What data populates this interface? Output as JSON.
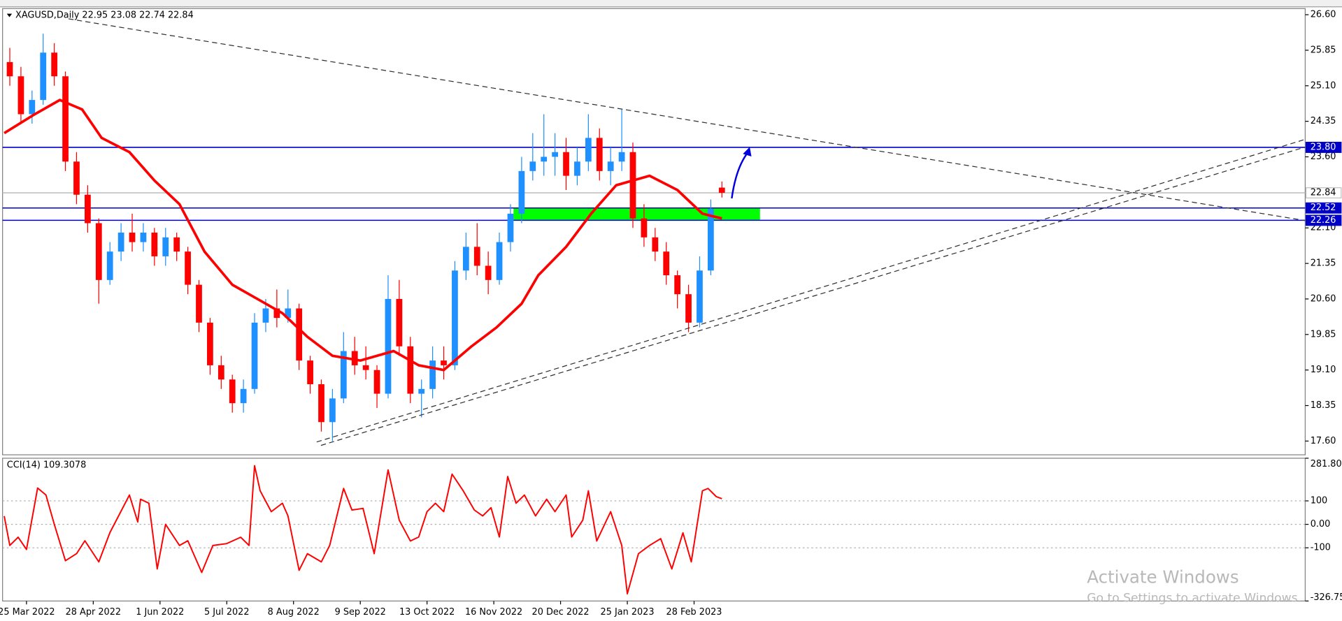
{
  "chart_data": {
    "type": "candlestick",
    "title": "XAGUSD,Daily  22.95 23.08 22.74 22.84",
    "up_color": "#1e90ff",
    "down_color": "#ff0000",
    "x": [
      2,
      6,
      10,
      14,
      18,
      22,
      26,
      30,
      34,
      38,
      42,
      46,
      50,
      54,
      58,
      62,
      66,
      70,
      74,
      78,
      82,
      86,
      90,
      94,
      98,
      102,
      106,
      110,
      114,
      118,
      122,
      126,
      130,
      134,
      138,
      142,
      146,
      150,
      154,
      158,
      162,
      166,
      170,
      174,
      178,
      182,
      186,
      190,
      194,
      198,
      202,
      206,
      210,
      214,
      218,
      222,
      226,
      230,
      234,
      238,
      242,
      246,
      250,
      254,
      258
    ],
    "ohlc": [
      [
        25.6,
        25.9,
        25.1,
        25.3
      ],
      [
        25.3,
        25.5,
        24.3,
        24.5
      ],
      [
        24.5,
        25.0,
        24.3,
        24.8
      ],
      [
        24.8,
        26.2,
        24.7,
        25.8
      ],
      [
        25.8,
        26.0,
        25.1,
        25.3
      ],
      [
        25.3,
        25.4,
        23.3,
        23.5
      ],
      [
        23.5,
        23.7,
        22.6,
        22.8
      ],
      [
        22.8,
        23.0,
        22.0,
        22.2
      ],
      [
        22.2,
        22.3,
        20.5,
        21.0
      ],
      [
        21.0,
        21.8,
        20.9,
        21.6
      ],
      [
        21.6,
        22.2,
        21.4,
        22.0
      ],
      [
        22.0,
        22.4,
        21.6,
        21.8
      ],
      [
        21.8,
        22.2,
        21.6,
        22.0
      ],
      [
        22.0,
        22.1,
        21.3,
        21.5
      ],
      [
        21.5,
        22.1,
        21.3,
        21.9
      ],
      [
        21.9,
        22.0,
        21.4,
        21.6
      ],
      [
        21.6,
        21.7,
        20.7,
        20.9
      ],
      [
        20.9,
        21.0,
        19.9,
        20.1
      ],
      [
        20.1,
        20.2,
        19.0,
        19.2
      ],
      [
        19.2,
        19.4,
        18.7,
        18.9
      ],
      [
        18.9,
        19.0,
        18.2,
        18.4
      ],
      [
        18.4,
        18.9,
        18.2,
        18.7
      ],
      [
        18.7,
        20.3,
        18.6,
        20.1
      ],
      [
        20.1,
        20.6,
        19.9,
        20.4
      ],
      [
        20.4,
        20.8,
        20.0,
        20.2
      ],
      [
        20.2,
        20.8,
        20.1,
        20.4
      ],
      [
        20.4,
        20.5,
        19.1,
        19.3
      ],
      [
        19.3,
        19.4,
        18.6,
        18.8
      ],
      [
        18.8,
        18.9,
        17.8,
        18.0
      ],
      [
        18.0,
        18.7,
        17.6,
        18.5
      ],
      [
        18.5,
        19.9,
        18.4,
        19.5
      ],
      [
        19.5,
        19.8,
        19.0,
        19.2
      ],
      [
        19.2,
        19.6,
        18.9,
        19.1
      ],
      [
        19.1,
        19.2,
        18.3,
        18.6
      ],
      [
        18.6,
        21.1,
        18.5,
        20.6
      ],
      [
        20.6,
        21.0,
        19.4,
        19.6
      ],
      [
        19.6,
        19.8,
        18.4,
        18.6
      ],
      [
        18.6,
        18.9,
        18.1,
        18.7
      ],
      [
        18.7,
        19.6,
        18.5,
        19.3
      ],
      [
        19.3,
        19.6,
        18.9,
        19.2
      ],
      [
        19.2,
        21.4,
        19.1,
        21.2
      ],
      [
        21.2,
        22.0,
        21.0,
        21.7
      ],
      [
        21.7,
        22.2,
        21.1,
        21.3
      ],
      [
        21.3,
        21.6,
        20.7,
        21.0
      ],
      [
        21.0,
        22.0,
        20.9,
        21.8
      ],
      [
        21.8,
        22.6,
        21.6,
        22.4
      ],
      [
        22.4,
        23.6,
        22.2,
        23.3
      ],
      [
        23.3,
        24.1,
        23.1,
        23.5
      ],
      [
        23.5,
        24.5,
        23.2,
        23.6
      ],
      [
        23.6,
        24.1,
        23.2,
        23.7
      ],
      [
        23.7,
        24.0,
        22.9,
        23.2
      ],
      [
        23.2,
        23.8,
        23.0,
        23.5
      ],
      [
        23.5,
        24.5,
        23.3,
        24.0
      ],
      [
        24.0,
        24.2,
        23.1,
        23.3
      ],
      [
        23.3,
        23.8,
        23.0,
        23.5
      ],
      [
        23.5,
        24.6,
        23.3,
        23.7
      ],
      [
        23.7,
        23.9,
        22.1,
        22.3
      ],
      [
        22.3,
        22.6,
        21.7,
        21.9
      ],
      [
        21.9,
        22.1,
        21.4,
        21.6
      ],
      [
        21.6,
        21.8,
        20.9,
        21.1
      ],
      [
        21.1,
        21.2,
        20.4,
        20.7
      ],
      [
        20.7,
        20.9,
        19.9,
        20.1
      ],
      [
        20.1,
        21.5,
        20.0,
        21.2
      ],
      [
        21.2,
        22.7,
        21.1,
        22.5
      ],
      [
        22.95,
        23.08,
        22.74,
        22.84
      ]
    ],
    "xlim": [
      -0.6,
      467.7
    ],
    "xticks": [
      {
        "value": 8,
        "label": "25 Mar 2022"
      },
      {
        "value": 32,
        "label": "28 Apr 2022"
      },
      {
        "value": 56,
        "label": "1 Jun 2022"
      },
      {
        "value": 80,
        "label": "5 Jul 2022"
      },
      {
        "value": 104,
        "label": "8 Aug 2022"
      },
      {
        "value": 128,
        "label": "9 Sep 2022"
      },
      {
        "value": 152,
        "label": "13 Oct 2022"
      },
      {
        "value": 176,
        "label": "16 Nov 2022"
      },
      {
        "value": 200,
        "label": "20 Dec 2022"
      },
      {
        "value": 224,
        "label": "25 Jan 2023"
      },
      {
        "value": 248,
        "label": "28 Feb 2023"
      }
    ],
    "ylim": [
      17.31,
      26.73
    ],
    "yticks": [
      {
        "value": 26.6,
        "label": "26.60"
      },
      25.85,
      {
        "value": 25.1,
        "label": "25.10"
      },
      24.35,
      {
        "value": 23.6,
        "label": "23.60"
      },
      {
        "value": 22.1,
        "label": "22.10"
      },
      21.35,
      {
        "value": 20.6,
        "label": "20.60"
      },
      19.85,
      {
        "value": 19.1,
        "label": "19.10"
      },
      18.35,
      {
        "value": 17.6,
        "label": "17.60"
      }
    ],
    "levels": [
      {
        "value": 23.8,
        "label": "23.80",
        "color": "#0000c8",
        "text_color": "#ffffff"
      },
      {
        "value": 22.52,
        "label": "22.52",
        "color": "#0000c8",
        "text_color": "#ffffff"
      },
      {
        "value": 22.26,
        "label": "22.26",
        "color": "#0000c8",
        "text_color": "#ffffff"
      },
      {
        "value": 22.84,
        "label": "22.84",
        "color": "#c0c0c0",
        "text_color": "#000000"
      }
    ],
    "zone_color": "#00ff00",
    "ma": {
      "color": "#ff0000",
      "x": [
        0,
        11,
        20,
        28,
        35,
        45,
        54,
        63,
        72,
        82,
        91,
        100,
        109,
        118,
        128,
        140,
        149,
        158,
        168,
        177,
        186,
        192,
        202,
        211,
        220,
        232,
        242,
        251,
        258
      ],
      "values": [
        24.1,
        24.5,
        24.8,
        24.6,
        24.0,
        23.7,
        23.1,
        22.6,
        21.6,
        20.9,
        20.6,
        20.3,
        19.8,
        19.4,
        19.3,
        19.5,
        19.2,
        19.1,
        19.6,
        20.0,
        20.5,
        21.1,
        21.7,
        22.4,
        23.0,
        23.2,
        22.9,
        22.4,
        22.3
      ]
    },
    "cci": {
      "title": "CCI(14) 109.3078",
      "color": "#ff0000",
      "x": [
        0,
        2,
        5,
        8,
        12,
        15,
        18,
        22,
        26,
        29,
        34,
        38,
        45,
        48,
        49,
        52,
        55,
        58,
        63,
        66,
        71,
        75,
        80,
        85,
        88,
        90,
        92,
        96,
        100,
        102,
        106,
        109,
        114,
        117,
        122,
        125,
        129,
        133,
        138,
        142,
        146,
        149,
        152,
        155,
        158,
        161,
        165,
        169,
        172,
        175,
        178,
        181,
        184,
        187,
        191,
        195,
        198,
        202,
        204,
        208,
        210,
        213,
        218,
        222,
        224,
        228,
        232,
        236,
        240,
        244,
        247,
        251,
        253,
        256,
        258
      ],
      "values": [
        35,
        -90,
        -55,
        -107,
        155,
        125,
        0,
        -155,
        -125,
        -70,
        -160,
        -35,
        125,
        10,
        107,
        90,
        -190,
        0,
        -90,
        -70,
        -205,
        -90,
        -82,
        -55,
        -90,
        250,
        143,
        54,
        90,
        36,
        -196,
        -125,
        -160,
        -90,
        153,
        61,
        68,
        -125,
        232,
        18,
        -71,
        -54,
        54,
        90,
        54,
        214,
        143,
        61,
        36,
        71,
        -54,
        204,
        90,
        125,
        36,
        107,
        54,
        125,
        -54,
        18,
        143,
        -71,
        54,
        -90,
        -296,
        -125,
        -90,
        -61,
        -190,
        -36,
        -160,
        143,
        153,
        118,
        109.3078
      ],
      "ylim": [
        -326.754,
        281.803
      ],
      "yticks": [
        {
          "value": 281.803,
          "label": "281.803"
        },
        100,
        {
          "value": 0,
          "label": "0.00"
        },
        -100,
        {
          "value": -326.754,
          "label": "-326.754"
        }
      ]
    },
    "watermark": [
      "Activate Windows",
      "Go to Settings to activate Windows."
    ]
  }
}
